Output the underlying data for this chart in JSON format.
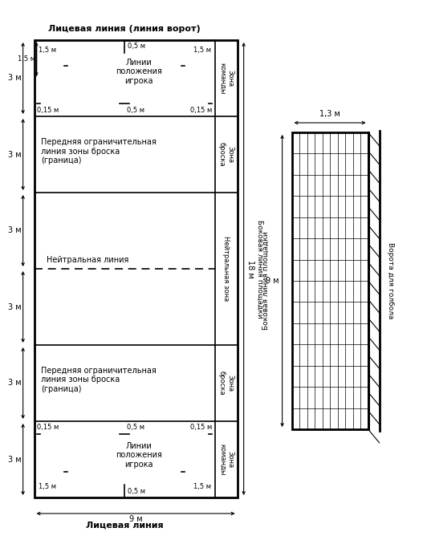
{
  "bg_color": "#ffffff",
  "line_color": "#000000",
  "title_top": "Лицевая линия (линия ворот)",
  "title_bottom": "Лицевая линия",
  "label_9m_bottom": "9 м",
  "label_18m": "18 м",
  "label_9m_goal": "9 м",
  "label_sideline": "Боковая линия площадки",
  "label_neutral_zone": "Нейтральная зона",
  "label_neutral_line": "Нейтральная линия",
  "label_zone_team_top": "Зона\nкоманды",
  "label_zone_throw_top": "Зона\nброска",
  "label_zone_throw_bot": "Зона\nброска",
  "label_zone_team_bot": "Зона\nкоманды",
  "label_front_line_top": "Передняя ограничительная\nлиния зоны броска\n(граница)",
  "label_front_line_bot": "Передняя ограничительная\nлиния зоны броска\n(граница)",
  "label_player_pos_top": "Линии\nположения\nигрока",
  "label_player_pos_bot": "Линии\nположения\nигрока",
  "label_goal": "Ворота для голбола",
  "dim_3m_labels": [
    "3 м",
    "3 м",
    "3 м",
    "3 м",
    "3 м",
    "3 м"
  ],
  "dim_top_05": "0,5 м",
  "dim_top_15left": "1,5 м",
  "dim_top_15right": "1,5 м",
  "dim_top_015left": "0,15 м",
  "dim_top_05b": "0,5 м",
  "dim_top_015right": "0,15 м",
  "dim_bot_05": "0,5 м",
  "dim_bot_15left": "1,5 м",
  "dim_bot_15right": "1,5 м",
  "dim_bot_015left": "0,15 м",
  "dim_bot_05b": "0,5 м",
  "dim_bot_015right": "0,15 м",
  "dim_goal_width": "1,3 м",
  "dim_goal_9m": "9 м"
}
